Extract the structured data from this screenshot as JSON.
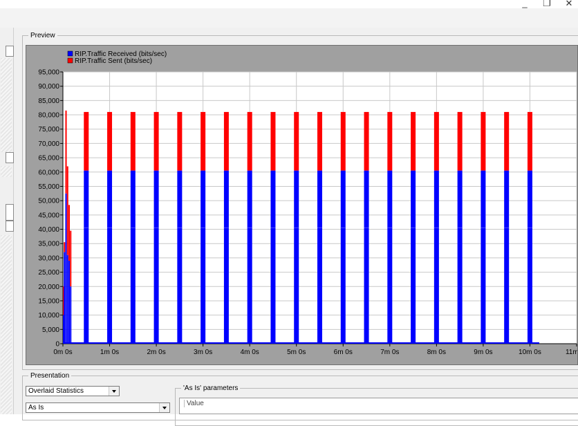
{
  "window": {
    "controls": [
      "_",
      "❐",
      "✕"
    ]
  },
  "preview": {
    "legend": "Preview"
  },
  "presentation": {
    "legend": "Presentation",
    "statistics_mode": "Overlaid Statistics",
    "style": "As Is"
  },
  "params": {
    "legend": "'As Is' parameters",
    "column_header": "Value"
  },
  "chart_data": {
    "type": "bar",
    "stacked": true,
    "title": "",
    "xlabel": "",
    "ylabel": "",
    "ylim": [
      0,
      95000
    ],
    "xlim_seconds": [
      0,
      660
    ],
    "yticks": [
      "0",
      "5,000",
      "10,000",
      "15,000",
      "20,000",
      "25,000",
      "30,000",
      "35,000",
      "40,000",
      "45,000",
      "50,000",
      "55,000",
      "60,000",
      "65,000",
      "70,000",
      "75,000",
      "80,000",
      "85,000",
      "90,000",
      "95,000"
    ],
    "xticks": [
      {
        "label": "0m 0s",
        "sec": 0
      },
      {
        "label": "1m 0s",
        "sec": 60
      },
      {
        "label": "2m 0s",
        "sec": 120
      },
      {
        "label": "3m 0s",
        "sec": 180
      },
      {
        "label": "4m 0s",
        "sec": 240
      },
      {
        "label": "5m 0s",
        "sec": 300
      },
      {
        "label": "6m 0s",
        "sec": 360
      },
      {
        "label": "7m 0s",
        "sec": 420
      },
      {
        "label": "8m 0s",
        "sec": 480
      },
      {
        "label": "9m 0s",
        "sec": 540
      },
      {
        "label": "10m 0s",
        "sec": 600
      },
      {
        "label": "11m 0s",
        "sec": 660
      }
    ],
    "grid": true,
    "legend_position": "top-left",
    "colors": {
      "received": "#0000ff",
      "sent": "#ff0000",
      "plot_bg": "#ffffff",
      "frame_bg": "#a0a0a0",
      "grid": "#c8c8c8"
    },
    "series": [
      {
        "name": "RIP.Traffic Received (bits/sec)",
        "color": "#0000ff"
      },
      {
        "name": "RIP.Traffic Sent (bits/sec)",
        "color": "#ff0000"
      }
    ],
    "points": [
      {
        "t": 1,
        "received": 10000,
        "sent": 10000
      },
      {
        "t": 2,
        "received": 32000,
        "sent": 3500
      },
      {
        "t": 4,
        "received": 52500,
        "sent": 29000
      },
      {
        "t": 6,
        "received": 31000,
        "sent": 31000
      },
      {
        "t": 8,
        "received": 29000,
        "sent": 19500
      },
      {
        "t": 10,
        "received": 20000,
        "sent": 19500
      },
      {
        "t": 30,
        "received": 60500,
        "sent": 20500
      },
      {
        "t": 60,
        "received": 60500,
        "sent": 20500
      },
      {
        "t": 90,
        "received": 60500,
        "sent": 20500
      },
      {
        "t": 120,
        "received": 60500,
        "sent": 20500
      },
      {
        "t": 150,
        "received": 60500,
        "sent": 20500
      },
      {
        "t": 180,
        "received": 60500,
        "sent": 20500
      },
      {
        "t": 210,
        "received": 60500,
        "sent": 20500
      },
      {
        "t": 240,
        "received": 60500,
        "sent": 20500
      },
      {
        "t": 270,
        "received": 60500,
        "sent": 20500
      },
      {
        "t": 300,
        "received": 60500,
        "sent": 20500
      },
      {
        "t": 330,
        "received": 60500,
        "sent": 20500
      },
      {
        "t": 360,
        "received": 60500,
        "sent": 20500
      },
      {
        "t": 390,
        "received": 60500,
        "sent": 20500
      },
      {
        "t": 420,
        "received": 60500,
        "sent": 20500
      },
      {
        "t": 450,
        "received": 60500,
        "sent": 20500
      },
      {
        "t": 480,
        "received": 60500,
        "sent": 20500
      },
      {
        "t": 510,
        "received": 60500,
        "sent": 20500
      },
      {
        "t": 540,
        "received": 60500,
        "sent": 20500
      },
      {
        "t": 570,
        "received": 60500,
        "sent": 20500
      },
      {
        "t": 600,
        "received": 60500,
        "sent": 20500
      }
    ],
    "secondary_level": 40500,
    "end_sec": 612
  }
}
